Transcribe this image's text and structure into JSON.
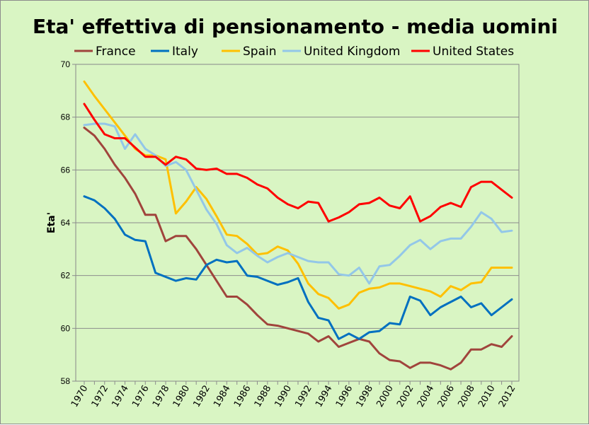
{
  "chart_data": {
    "type": "line",
    "title": "Eta' effettiva di pensionamento - media uomini",
    "ylabel": "Eta'",
    "xlabel": "",
    "ylim": [
      58,
      70
    ],
    "yticks": [
      58,
      60,
      62,
      64,
      66,
      68,
      70
    ],
    "xticks": [
      1970,
      1972,
      1974,
      1976,
      1978,
      1980,
      1982,
      1984,
      1986,
      1988,
      1990,
      1992,
      1994,
      1996,
      1998,
      2000,
      2002,
      2004,
      2006,
      2008,
      2010,
      2012
    ],
    "x": [
      1970,
      1971,
      1972,
      1973,
      1974,
      1975,
      1976,
      1977,
      1978,
      1979,
      1980,
      1981,
      1982,
      1983,
      1984,
      1985,
      1986,
      1987,
      1988,
      1989,
      1990,
      1991,
      1992,
      1993,
      1994,
      1995,
      1996,
      1997,
      1998,
      1999,
      2000,
      2001,
      2002,
      2003,
      2004,
      2005,
      2006,
      2007,
      2008,
      2009,
      2010,
      2011,
      2012
    ],
    "grid": "horizontal",
    "legend_position": "top",
    "series": [
      {
        "name": "France",
        "color": "#a0443c",
        "values": [
          67.6,
          67.3,
          66.8,
          66.2,
          65.7,
          65.1,
          64.3,
          64.3,
          63.3,
          63.5,
          63.5,
          63.0,
          62.4,
          61.8,
          61.2,
          61.2,
          60.9,
          60.5,
          60.15,
          60.1,
          60.0,
          59.9,
          59.8,
          59.5,
          59.7,
          59.3,
          59.45,
          59.6,
          59.5,
          59.05,
          58.8,
          58.75,
          58.5,
          58.7,
          58.7,
          58.6,
          58.45,
          58.7,
          59.2,
          59.2,
          59.4,
          59.3,
          59.7
        ]
      },
      {
        "name": "Italy",
        "color": "#0070c0",
        "values": [
          65.0,
          64.85,
          64.55,
          64.15,
          63.55,
          63.35,
          63.3,
          62.1,
          61.95,
          61.8,
          61.9,
          61.85,
          62.4,
          62.6,
          62.5,
          62.55,
          62.0,
          61.95,
          61.8,
          61.65,
          61.75,
          61.9,
          61.0,
          60.4,
          60.3,
          59.6,
          59.8,
          59.6,
          59.85,
          59.9,
          60.2,
          60.15,
          61.2,
          61.05,
          60.5,
          60.8,
          61.0,
          61.2,
          60.8,
          60.95,
          60.5,
          60.8,
          61.1
        ]
      },
      {
        "name": "Spain",
        "color": "#ffc000",
        "values": [
          69.35,
          68.8,
          68.3,
          67.8,
          67.3,
          66.8,
          66.55,
          66.55,
          66.4,
          64.35,
          64.8,
          65.35,
          64.9,
          64.25,
          63.55,
          63.5,
          63.2,
          62.8,
          62.85,
          63.1,
          62.95,
          62.45,
          61.7,
          61.3,
          61.15,
          60.75,
          60.9,
          61.35,
          61.5,
          61.55,
          61.7,
          61.7,
          61.6,
          61.5,
          61.4,
          61.2,
          61.6,
          61.45,
          61.7,
          61.75,
          62.3,
          62.3,
          62.3
        ]
      },
      {
        "name": "United Kingdom",
        "color": "#93c7e8",
        "values": [
          67.7,
          67.75,
          67.75,
          67.65,
          66.8,
          67.35,
          66.8,
          66.55,
          66.15,
          66.3,
          66.0,
          65.25,
          64.5,
          63.95,
          63.15,
          62.85,
          63.05,
          62.75,
          62.5,
          62.7,
          62.85,
          62.7,
          62.55,
          62.5,
          62.5,
          62.05,
          62.0,
          62.3,
          61.7,
          62.35,
          62.4,
          62.75,
          63.15,
          63.35,
          63.0,
          63.3,
          63.4,
          63.4,
          63.85,
          64.4,
          64.15,
          63.65,
          63.7
        ]
      },
      {
        "name": "United States",
        "color": "#ff0000",
        "values": [
          68.5,
          67.9,
          67.35,
          67.2,
          67.2,
          66.85,
          66.5,
          66.5,
          66.2,
          66.5,
          66.4,
          66.05,
          66.0,
          66.05,
          65.85,
          65.85,
          65.7,
          65.45,
          65.3,
          64.95,
          64.7,
          64.55,
          64.8,
          64.75,
          64.05,
          64.2,
          64.4,
          64.7,
          64.75,
          64.95,
          64.65,
          64.55,
          65.0,
          64.05,
          64.25,
          64.6,
          64.75,
          64.6,
          65.35,
          65.55,
          65.55,
          65.25,
          64.95
        ]
      }
    ]
  }
}
